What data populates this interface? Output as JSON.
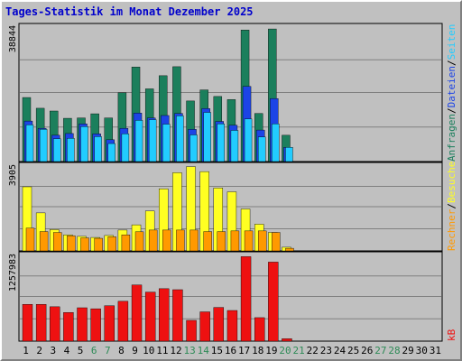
{
  "title": "Tages-Statistik im Monat Dezember 2025",
  "colors": {
    "anfragen": "#1b7f5c",
    "dateien": "#1c44e6",
    "seiten": "#22ccff",
    "besuche": "#ffff22",
    "rechner": "#ff9900",
    "kb": "#ee1111",
    "weekday": "#000000",
    "weekend": "#2e8b57",
    "slash": "#000000"
  },
  "chart_data": [
    {
      "type": "bar",
      "ytick": "38844",
      "ylim": [
        0,
        38844
      ],
      "legend": [
        {
          "label": "Anfragen",
          "color_key": "anfragen"
        },
        {
          "label": "Dateien",
          "color_key": "dateien"
        },
        {
          "label": "Seiten",
          "color_key": "seiten"
        }
      ],
      "categories": [
        "1",
        "2",
        "3",
        "4",
        "5",
        "6",
        "7",
        "8",
        "9",
        "10",
        "11",
        "12",
        "13",
        "14",
        "15",
        "16",
        "17",
        "18",
        "19",
        "20",
        "21",
        "22",
        "23",
        "24",
        "25",
        "26",
        "27",
        "28",
        "29",
        "30",
        "31"
      ],
      "series": [
        {
          "name": "Anfragen",
          "color_key": "anfragen",
          "values": [
            18500,
            15400,
            14600,
            12500,
            12600,
            13800,
            12600,
            19900,
            27300,
            21000,
            24800,
            27400,
            17500,
            20700,
            18800,
            17900,
            38000,
            13900,
            38300,
            7600,
            0,
            0,
            0,
            0,
            0,
            0,
            0,
            0,
            0,
            0,
            0
          ]
        },
        {
          "name": "Dateien",
          "color_key": "dateien",
          "values": [
            11700,
            9600,
            7600,
            8100,
            10900,
            8000,
            6300,
            9600,
            14000,
            12600,
            13300,
            13900,
            9300,
            15300,
            11600,
            10500,
            21700,
            9100,
            18200,
            4100,
            0,
            0,
            0,
            0,
            0,
            0,
            0,
            0,
            0,
            0,
            0
          ]
        },
        {
          "name": "Seiten",
          "color_key": "seiten",
          "values": [
            10600,
            9300,
            6600,
            6700,
            10100,
            7200,
            5200,
            8000,
            11900,
            12100,
            10800,
            13200,
            7700,
            14200,
            10900,
            9000,
            12300,
            7100,
            10900,
            4100,
            0,
            0,
            0,
            0,
            0,
            0,
            0,
            0,
            0,
            0,
            0
          ]
        }
      ]
    },
    {
      "type": "bar",
      "ytick": "3905",
      "ylim": [
        0,
        3905
      ],
      "legend": [
        {
          "label": "Rechner",
          "color_key": "rechner"
        },
        {
          "label": "Besuche",
          "color_key": "besuche"
        }
      ],
      "categories": [
        "1",
        "2",
        "3",
        "4",
        "5",
        "6",
        "7",
        "8",
        "9",
        "10",
        "11",
        "12",
        "13",
        "14",
        "15",
        "16",
        "17",
        "18",
        "19",
        "20",
        "21",
        "22",
        "23",
        "24",
        "25",
        "26",
        "27",
        "28",
        "29",
        "30",
        "31"
      ],
      "series": [
        {
          "name": "Besuche",
          "color_key": "besuche",
          "values": [
            2950,
            1750,
            980,
            740,
            670,
            620,
            710,
            960,
            1200,
            1840,
            2860,
            3600,
            3880,
            3650,
            2900,
            2720,
            1930,
            1230,
            850,
            170,
            0,
            0,
            0,
            0,
            0,
            0,
            0,
            0,
            0,
            0,
            0
          ]
        },
        {
          "name": "Rechner",
          "color_key": "rechner",
          "values": [
            1050,
            890,
            850,
            700,
            600,
            580,
            650,
            740,
            880,
            960,
            960,
            960,
            960,
            890,
            890,
            920,
            920,
            920,
            850,
            120,
            0,
            0,
            0,
            0,
            0,
            0,
            0,
            0,
            0,
            0,
            0
          ]
        }
      ]
    },
    {
      "type": "bar",
      "ytick": "1257983",
      "ylim": [
        0,
        1257983
      ],
      "legend": [
        {
          "label": "kB",
          "color_key": "kb"
        }
      ],
      "categories": [
        "1",
        "2",
        "3",
        "4",
        "5",
        "6",
        "7",
        "8",
        "9",
        "10",
        "11",
        "12",
        "13",
        "14",
        "15",
        "16",
        "17",
        "18",
        "19",
        "20",
        "21",
        "22",
        "23",
        "24",
        "25",
        "26",
        "27",
        "28",
        "29",
        "30",
        "31"
      ],
      "series": [
        {
          "name": "kB",
          "color_key": "kb",
          "values": [
            540000,
            540000,
            505000,
            420000,
            490000,
            475000,
            520000,
            585000,
            825000,
            720000,
            770000,
            755000,
            305000,
            430000,
            495000,
            450000,
            1240000,
            345000,
            1160000,
            36000,
            0,
            0,
            0,
            0,
            0,
            0,
            0,
            0,
            0,
            0,
            0
          ]
        }
      ]
    }
  ],
  "weekend_days": [
    "6",
    "7",
    "13",
    "14",
    "20",
    "21",
    "27",
    "28"
  ]
}
